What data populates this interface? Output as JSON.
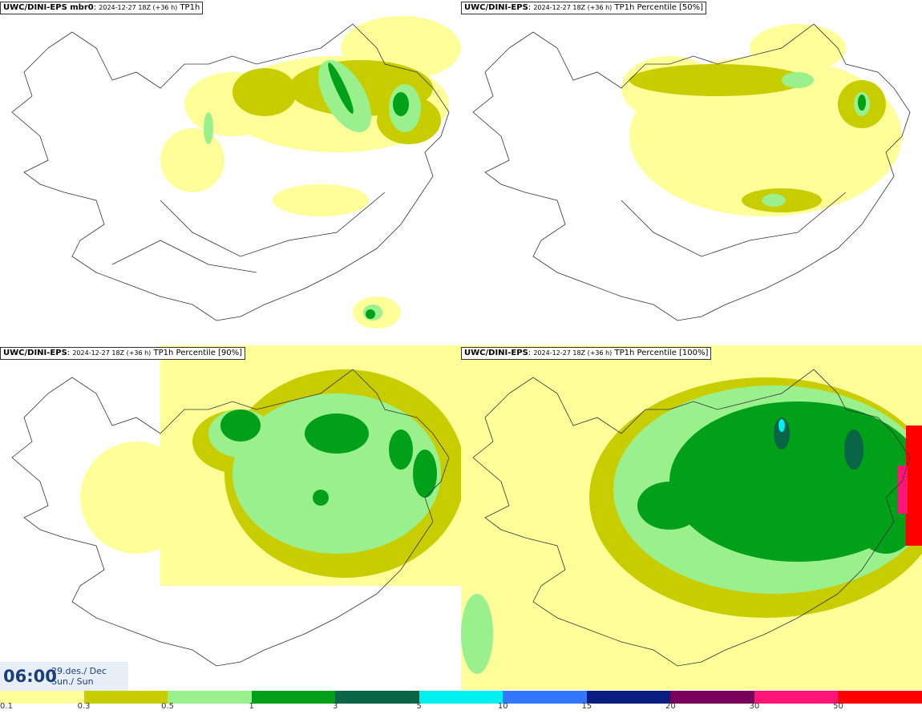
{
  "panels": [
    {
      "model": "UWC/DINI-EPS mbr0",
      "run": "2024-12-27 18Z (+36 h)",
      "param": "TP1h"
    },
    {
      "model": "UWC/DINI-EPS",
      "run": "2024-12-27 18Z (+36 h)",
      "param": "TP1h Percentile [50%]"
    },
    {
      "model": "UWC/DINI-EPS",
      "run": "2024-12-27 18Z (+36 h)",
      "param": "TP1h Percentile [90%]"
    },
    {
      "model": "UWC/DINI-EPS",
      "run": "2024-12-27 18Z (+36 h)",
      "param": "TP1h Percentile [100%]"
    }
  ],
  "time": {
    "clock": "06:00",
    "date_line1": "29.des./ Dec",
    "date_line2": "Sun./ Sun"
  },
  "legend": {
    "colors": [
      "#ffff9a",
      "#c8cd00",
      "#9af08c",
      "#00a019",
      "#0a6446",
      "#00f0f0",
      "#3278ff",
      "#0a1e82",
      "#78005a",
      "#ff1478",
      "#ff0000"
    ],
    "labels": [
      "0.1",
      "0.3",
      "0.5",
      "1",
      "3",
      "5",
      "10",
      "15",
      "20",
      "30",
      "50"
    ]
  }
}
